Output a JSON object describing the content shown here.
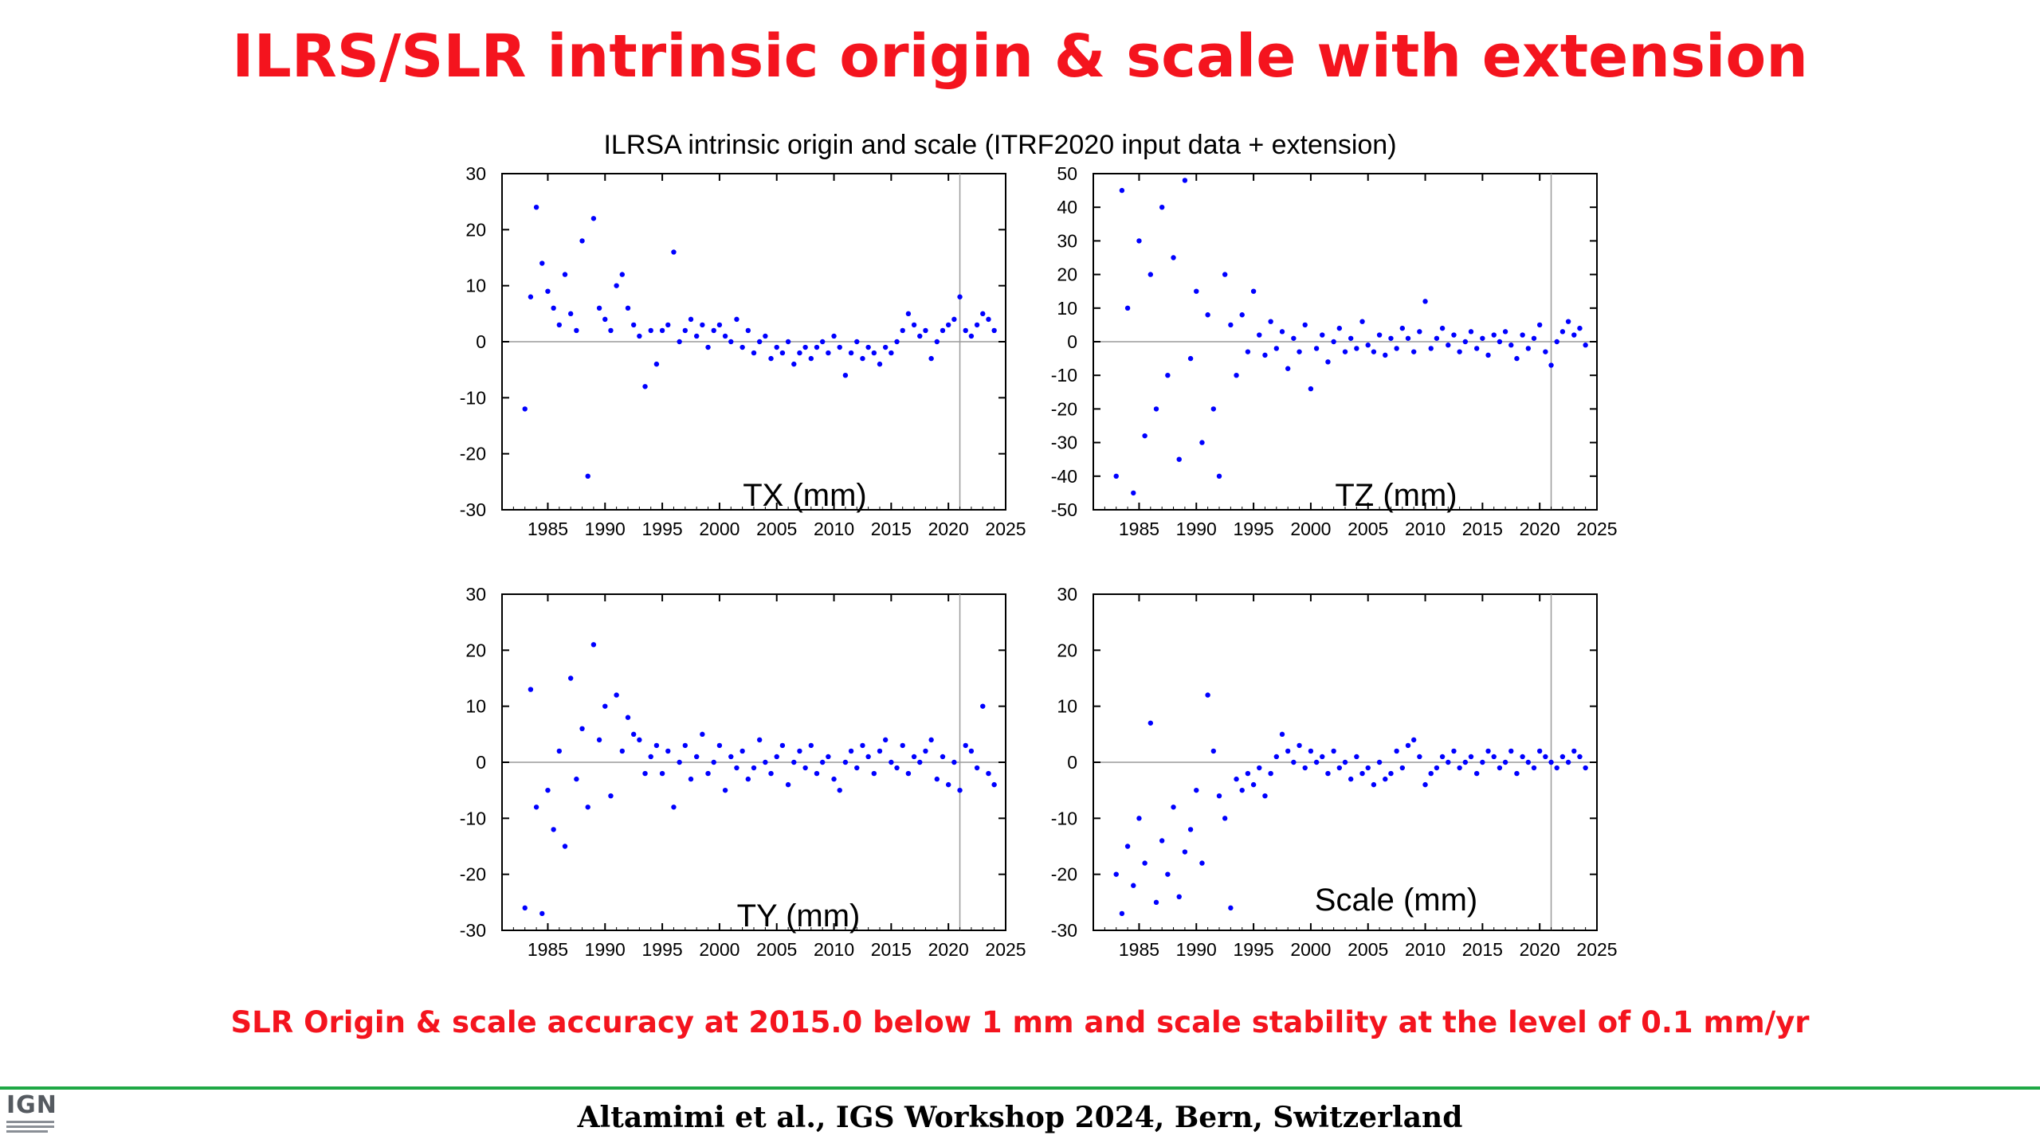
{
  "slide": {
    "title": "ILRS/SLR intrinsic origin & scale with extension",
    "summary": "SLR Origin & scale accuracy at 2015.0 below 1 mm and scale stability at the level of 0.1 mm/yr",
    "citation": "Altamimi et al., IGS Workshop 2024, Bern, Switzerland",
    "logo": "IGN"
  },
  "colors": {
    "title": "#f4141e",
    "points": "#0000ff",
    "footer_rule": "#1fa845"
  },
  "chart_data": [
    {
      "type": "scatter",
      "title": "ILRSA intrinsic origin and scale (ITRF2020 input data + extension)",
      "label": "TX (mm)",
      "xlim": [
        1981,
        2025
      ],
      "xticks": [
        1985,
        1990,
        1995,
        2000,
        2005,
        2010,
        2015,
        2020,
        2025
      ],
      "ylim": [
        -30,
        30
      ],
      "yticks": [
        -30,
        -20,
        -10,
        0,
        10,
        20,
        30
      ],
      "zero_line": true,
      "vertical_line_x": 2021,
      "series": [
        {
          "x": [
            1983.0,
            1983.5,
            1984.0,
            1984.5,
            1985.0,
            1985.5,
            1986.0,
            1986.5,
            1987.0,
            1987.5,
            1988.0,
            1988.5,
            1989.0,
            1989.5,
            1990.0,
            1990.5,
            1991.0,
            1991.5,
            1992.0,
            1992.5,
            1993.0,
            1993.5,
            1994.0,
            1994.5,
            1995.0,
            1995.5,
            1996.0,
            1996.5,
            1997.0,
            1997.5,
            1998.0,
            1998.5,
            1999.0,
            1999.5,
            2000.0,
            2000.5,
            2001.0,
            2001.5,
            2002.0,
            2002.5,
            2003.0,
            2003.5,
            2004.0,
            2004.5,
            2005.0,
            2005.5,
            2006.0,
            2006.5,
            2007.0,
            2007.5,
            2008.0,
            2008.5,
            2009.0,
            2009.5,
            2010.0,
            2010.5,
            2011.0,
            2011.5,
            2012.0,
            2012.5,
            2013.0,
            2013.5,
            2014.0,
            2014.5,
            2015.0,
            2015.5,
            2016.0,
            2016.5,
            2017.0,
            2017.5,
            2018.0,
            2018.5,
            2019.0,
            2019.5,
            2020.0,
            2020.5,
            2021.0,
            2021.5,
            2022.0,
            2022.5,
            2023.0,
            2023.5,
            2024.0
          ],
          "y": [
            -12,
            8,
            24,
            14,
            9,
            6,
            3,
            12,
            5,
            2,
            18,
            -24,
            22,
            6,
            4,
            2,
            10,
            12,
            6,
            3,
            1,
            -8,
            2,
            -4,
            2,
            3,
            16,
            0,
            2,
            4,
            1,
            3,
            -1,
            2,
            3,
            1,
            0,
            4,
            -1,
            2,
            -2,
            0,
            1,
            -3,
            -1,
            -2,
            0,
            -4,
            -2,
            -1,
            -3,
            -1,
            0,
            -2,
            1,
            -1,
            -6,
            -2,
            0,
            -3,
            -1,
            -2,
            -4,
            -1,
            -2,
            0,
            2,
            5,
            3,
            1,
            2,
            -3,
            0,
            2,
            3,
            4,
            8,
            2,
            1,
            3,
            5,
            4,
            2
          ]
        }
      ]
    },
    {
      "type": "scatter",
      "label": "TZ (mm)",
      "xlim": [
        1981,
        2025
      ],
      "xticks": [
        1985,
        1990,
        1995,
        2000,
        2005,
        2010,
        2015,
        2020,
        2025
      ],
      "ylim": [
        -50,
        50
      ],
      "yticks": [
        -50,
        -40,
        -30,
        -20,
        -10,
        0,
        10,
        20,
        30,
        40,
        50
      ],
      "zero_line": true,
      "vertical_line_x": 2021,
      "series": [
        {
          "x": [
            1983.0,
            1983.5,
            1984.0,
            1984.5,
            1985.0,
            1985.5,
            1986.0,
            1986.5,
            1987.0,
            1987.5,
            1988.0,
            1988.5,
            1989.0,
            1989.5,
            1990.0,
            1990.5,
            1991.0,
            1991.5,
            1992.0,
            1992.5,
            1993.0,
            1993.5,
            1994.0,
            1994.5,
            1995.0,
            1995.5,
            1996.0,
            1996.5,
            1997.0,
            1997.5,
            1998.0,
            1998.5,
            1999.0,
            1999.5,
            2000.0,
            2000.5,
            2001.0,
            2001.5,
            2002.0,
            2002.5,
            2003.0,
            2003.5,
            2004.0,
            2004.5,
            2005.0,
            2005.5,
            2006.0,
            2006.5,
            2007.0,
            2007.5,
            2008.0,
            2008.5,
            2009.0,
            2009.5,
            2010.0,
            2010.5,
            2011.0,
            2011.5,
            2012.0,
            2012.5,
            2013.0,
            2013.5,
            2014.0,
            2014.5,
            2015.0,
            2015.5,
            2016.0,
            2016.5,
            2017.0,
            2017.5,
            2018.0,
            2018.5,
            2019.0,
            2019.5,
            2020.0,
            2020.5,
            2021.0,
            2021.5,
            2022.0,
            2022.5,
            2023.0,
            2023.5,
            2024.0
          ],
          "y": [
            -40,
            45,
            10,
            -45,
            30,
            -28,
            20,
            -20,
            40,
            -10,
            25,
            -35,
            48,
            -5,
            15,
            -30,
            8,
            -20,
            -40,
            20,
            5,
            -10,
            8,
            -3,
            15,
            2,
            -4,
            6,
            -2,
            3,
            -8,
            1,
            -3,
            5,
            -14,
            -2,
            2,
            -6,
            0,
            4,
            -3,
            1,
            -2,
            6,
            -1,
            -3,
            2,
            -4,
            1,
            -2,
            4,
            1,
            -3,
            3,
            12,
            -2,
            1,
            4,
            -1,
            2,
            -3,
            0,
            3,
            -2,
            1,
            -4,
            2,
            0,
            3,
            -1,
            -5,
            2,
            -2,
            1,
            5,
            -3,
            -7,
            0,
            3,
            6,
            2,
            4,
            -1
          ]
        }
      ]
    },
    {
      "type": "scatter",
      "label": "TY (mm)",
      "xlim": [
        1981,
        2025
      ],
      "xticks": [
        1985,
        1990,
        1995,
        2000,
        2005,
        2010,
        2015,
        2020,
        2025
      ],
      "ylim": [
        -30,
        30
      ],
      "yticks": [
        -30,
        -20,
        -10,
        0,
        10,
        20,
        30
      ],
      "zero_line": true,
      "vertical_line_x": 2021,
      "series": [
        {
          "x": [
            1983.0,
            1983.5,
            1984.0,
            1984.5,
            1985.0,
            1985.5,
            1986.0,
            1986.5,
            1987.0,
            1987.5,
            1988.0,
            1988.5,
            1989.0,
            1989.5,
            1990.0,
            1990.5,
            1991.0,
            1991.5,
            1992.0,
            1992.5,
            1993.0,
            1993.5,
            1994.0,
            1994.5,
            1995.0,
            1995.5,
            1996.0,
            1996.5,
            1997.0,
            1997.5,
            1998.0,
            1998.5,
            1999.0,
            1999.5,
            2000.0,
            2000.5,
            2001.0,
            2001.5,
            2002.0,
            2002.5,
            2003.0,
            2003.5,
            2004.0,
            2004.5,
            2005.0,
            2005.5,
            2006.0,
            2006.5,
            2007.0,
            2007.5,
            2008.0,
            2008.5,
            2009.0,
            2009.5,
            2010.0,
            2010.5,
            2011.0,
            2011.5,
            2012.0,
            2012.5,
            2013.0,
            2013.5,
            2014.0,
            2014.5,
            2015.0,
            2015.5,
            2016.0,
            2016.5,
            2017.0,
            2017.5,
            2018.0,
            2018.5,
            2019.0,
            2019.5,
            2020.0,
            2020.5,
            2021.0,
            2021.5,
            2022.0,
            2022.5,
            2023.0,
            2023.5,
            2024.0
          ],
          "y": [
            -26,
            13,
            -8,
            -27,
            -5,
            -12,
            2,
            -15,
            15,
            -3,
            6,
            -8,
            21,
            4,
            10,
            -6,
            12,
            2,
            8,
            5,
            4,
            -2,
            1,
            3,
            -2,
            2,
            -8,
            0,
            3,
            -3,
            1,
            5,
            -2,
            0,
            3,
            -5,
            1,
            -1,
            2,
            -3,
            -1,
            4,
            0,
            -2,
            1,
            3,
            -4,
            0,
            2,
            -1,
            3,
            -2,
            0,
            1,
            -3,
            -5,
            0,
            2,
            -1,
            3,
            1,
            -2,
            2,
            4,
            0,
            -1,
            3,
            -2,
            1,
            0,
            2,
            4,
            -3,
            1,
            -4,
            0,
            -5,
            3,
            2,
            -1,
            10,
            -2,
            -4
          ]
        }
      ]
    },
    {
      "type": "scatter",
      "label": "Scale (mm)",
      "xlim": [
        1981,
        2025
      ],
      "xticks": [
        1985,
        1990,
        1995,
        2000,
        2005,
        2010,
        2015,
        2020,
        2025
      ],
      "ylim": [
        -30,
        30
      ],
      "yticks": [
        -30,
        -20,
        -10,
        0,
        10,
        20,
        30
      ],
      "zero_line": true,
      "vertical_line_x": 2021,
      "series": [
        {
          "x": [
            1983.0,
            1983.5,
            1984.0,
            1984.5,
            1985.0,
            1985.5,
            1986.0,
            1986.5,
            1987.0,
            1987.5,
            1988.0,
            1988.5,
            1989.0,
            1989.5,
            1990.0,
            1990.5,
            1991.0,
            1991.5,
            1992.0,
            1992.5,
            1993.0,
            1993.5,
            1994.0,
            1994.5,
            1995.0,
            1995.5,
            1996.0,
            1996.5,
            1997.0,
            1997.5,
            1998.0,
            1998.5,
            1999.0,
            1999.5,
            2000.0,
            2000.5,
            2001.0,
            2001.5,
            2002.0,
            2002.5,
            2003.0,
            2003.5,
            2004.0,
            2004.5,
            2005.0,
            2005.5,
            2006.0,
            2006.5,
            2007.0,
            2007.5,
            2008.0,
            2008.5,
            2009.0,
            2009.5,
            2010.0,
            2010.5,
            2011.0,
            2011.5,
            2012.0,
            2012.5,
            2013.0,
            2013.5,
            2014.0,
            2014.5,
            2015.0,
            2015.5,
            2016.0,
            2016.5,
            2017.0,
            2017.5,
            2018.0,
            2018.5,
            2019.0,
            2019.5,
            2020.0,
            2020.5,
            2021.0,
            2021.5,
            2022.0,
            2022.5,
            2023.0,
            2023.5,
            2024.0
          ],
          "y": [
            -20,
            -27,
            -15,
            -22,
            -10,
            -18,
            7,
            -25,
            -14,
            -20,
            -8,
            -24,
            -16,
            -12,
            -5,
            -18,
            12,
            2,
            -6,
            -10,
            -26,
            -3,
            -5,
            -2,
            -4,
            -1,
            -6,
            -2,
            1,
            5,
            2,
            0,
            3,
            -1,
            2,
            0,
            1,
            -2,
            2,
            -1,
            0,
            -3,
            1,
            -2,
            -1,
            -4,
            0,
            -3,
            -2,
            2,
            -1,
            3,
            4,
            1,
            -4,
            -2,
            -1,
            1,
            0,
            2,
            -1,
            0,
            1,
            -2,
            0,
            2,
            1,
            -1,
            0,
            2,
            -2,
            1,
            0,
            -1,
            2,
            1,
            0,
            -1,
            1,
            0,
            2,
            1,
            -1
          ]
        }
      ]
    }
  ]
}
